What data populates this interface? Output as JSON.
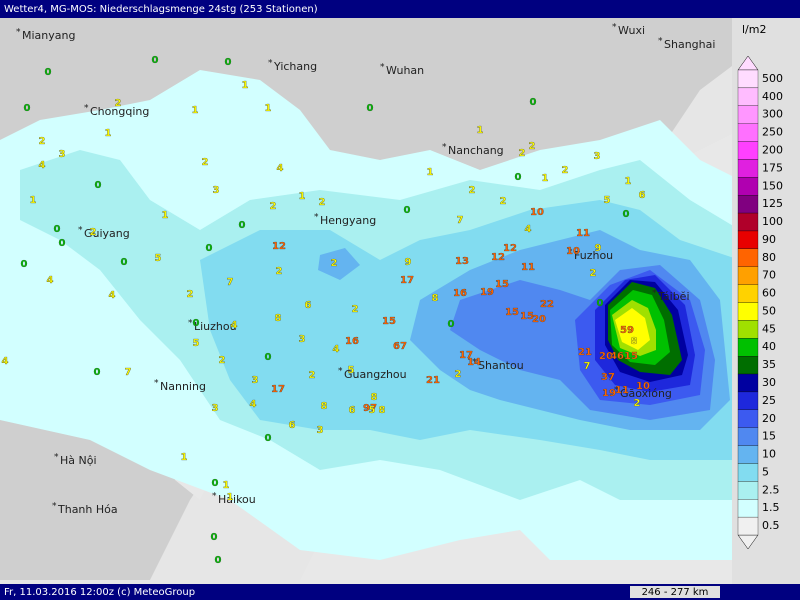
{
  "header": {
    "title": "Wetter4, MG-MOS: Niederschlagsmenge 24stg (253 Stationen)",
    "unit": "l/m2"
  },
  "footer": {
    "text": "Fr, 11.03.2016 12:00z (c) MeteoGroup",
    "scale": "246 - 277 km"
  },
  "cities": [
    "Mianyang",
    "Yichang",
    "Wuhan",
    "Wuxi",
    "Shanghai",
    "Chongqing",
    "Nanchang",
    "Hengyang",
    "Fuzhou",
    "Guiyang",
    "Táibĕi",
    "Liuzhou",
    "Shantou",
    "Guangzhou",
    "Nanning",
    "Gāoxióng",
    "Hà Nội",
    "Haikou",
    "Thanh Hóa"
  ],
  "stations": [
    0,
    0,
    0,
    1,
    2,
    0,
    1,
    1,
    1,
    2,
    3,
    2,
    4,
    0,
    1,
    0,
    2,
    2,
    3,
    2,
    1,
    0,
    1,
    4,
    0,
    3,
    1,
    2,
    2,
    2,
    1,
    6,
    5,
    0,
    1,
    1,
    0,
    2,
    0,
    7,
    10,
    4,
    0,
    2,
    0,
    0,
    0,
    0,
    4,
    5,
    12,
    2,
    9,
    13,
    12,
    12,
    11,
    10,
    9,
    11,
    2,
    7,
    2,
    2,
    17,
    15,
    19,
    8,
    16,
    22,
    0,
    4,
    6,
    2,
    0,
    4,
    8,
    15,
    15,
    15,
    20,
    0,
    5,
    3,
    4,
    16,
    67,
    59,
    8,
    2,
    0,
    0,
    7,
    5,
    2,
    3,
    17,
    17,
    14,
    2,
    21,
    21,
    20,
    46,
    15,
    7,
    37,
    10,
    11,
    19,
    2,
    3,
    4,
    8,
    6,
    97,
    8,
    8,
    5,
    6,
    3,
    0,
    1,
    0,
    1,
    1,
    0,
    0,
    4
  ],
  "legend": [
    {
      "value": 500,
      "color": "#ffdcff"
    },
    {
      "value": 400,
      "color": "#ffbcff"
    },
    {
      "value": 300,
      "color": "#ff96ff"
    },
    {
      "value": 250,
      "color": "#ff70ff"
    },
    {
      "value": 200,
      "color": "#ff40ff"
    },
    {
      "value": 175,
      "color": "#e020e0"
    },
    {
      "value": 150,
      "color": "#b000b0"
    },
    {
      "value": 125,
      "color": "#800080"
    },
    {
      "value": 100,
      "color": "#b0002a"
    },
    {
      "value": 90,
      "color": "#e80000"
    },
    {
      "value": 80,
      "color": "#ff6400"
    },
    {
      "value": 70,
      "color": "#ffa000"
    },
    {
      "value": 60,
      "color": "#ffd200"
    },
    {
      "value": 50,
      "color": "#ffff00"
    },
    {
      "value": 45,
      "color": "#a0e000"
    },
    {
      "value": 40,
      "color": "#00c000"
    },
    {
      "value": 35,
      "color": "#006e00"
    },
    {
      "value": 30,
      "color": "#0000a0"
    },
    {
      "value": 25,
      "color": "#1e28dc"
    },
    {
      "value": 20,
      "color": "#3c5af0"
    },
    {
      "value": 15,
      "color": "#5088f0"
    },
    {
      "value": 10,
      "color": "#64b4f0"
    },
    {
      "value": 5,
      "color": "#82dcf0"
    },
    {
      "value": 2.5,
      "color": "#aaf0f0"
    },
    {
      "value": 1.5,
      "color": "#d2ffff"
    },
    {
      "value": 0.5,
      "color": "#f0f0f0"
    }
  ]
}
